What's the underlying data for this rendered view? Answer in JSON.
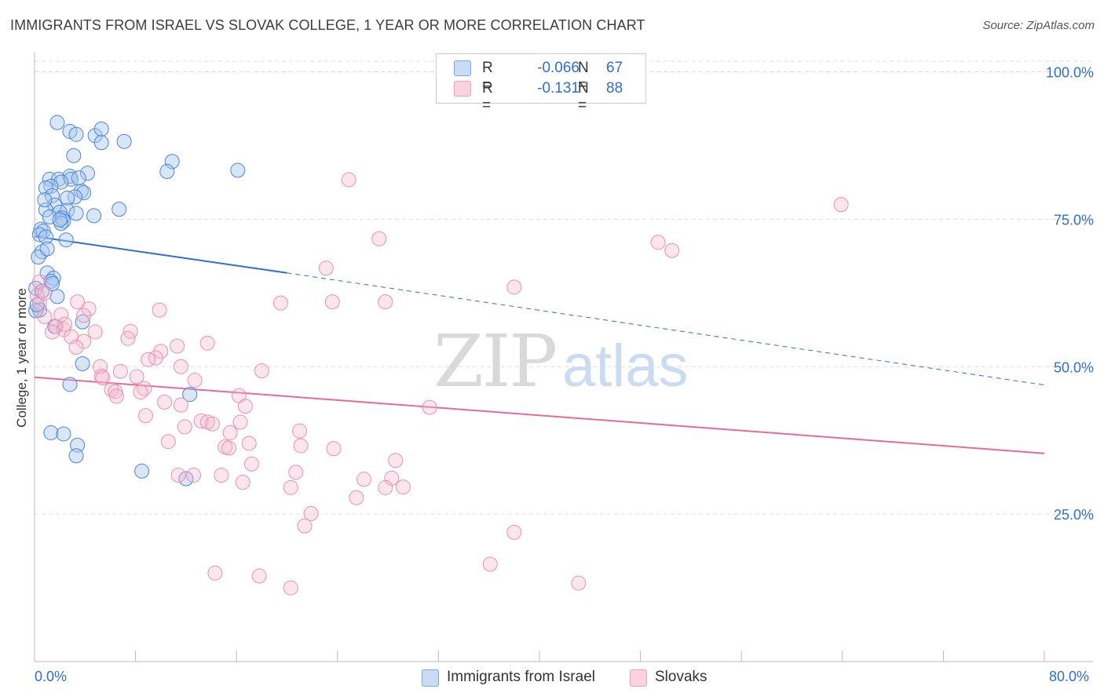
{
  "title": "IMMIGRANTS FROM ISRAEL VS SLOVAK COLLEGE, 1 YEAR OR MORE CORRELATION CHART",
  "source": "Source: ZipAtlas.com",
  "watermark": {
    "zip": "ZIP",
    "atlas": "atlas"
  },
  "legend": {
    "rows": [
      {
        "r_label": "R =",
        "r_value": "-0.066",
        "n_label": "N =",
        "n_value": "67",
        "color": "#a9c8f0"
      },
      {
        "r_label": "R =",
        "r_value": "-0.131",
        "n_label": "N =",
        "n_value": "88",
        "color": "#f7b8cc"
      }
    ]
  },
  "bottom_legend": [
    {
      "label": "Immigrants from Israel",
      "color": "#a9c8f0"
    },
    {
      "label": "Slovaks",
      "color": "#f7b8cc"
    }
  ],
  "colors": {
    "blue": "#2e6fd0",
    "blue_fill": "#a9c8f0",
    "pink": "#e8699a",
    "pink_fill": "#f7b8cc",
    "grid": "#dddddd",
    "axis_text": "#2e6fd0"
  },
  "chart_data": {
    "type": "scatter",
    "title": "IMMIGRANTS FROM ISRAEL VS SLOVAK COLLEGE, 1 YEAR OR MORE CORRELATION CHART",
    "xlabel": "",
    "ylabel": "College, 1 year or more",
    "xlim": [
      0,
      80
    ],
    "ylim": [
      0,
      103.4
    ],
    "x_tick_labels": [
      "0.0%",
      "80.0%"
    ],
    "y_ticks": [
      25,
      50,
      75,
      100
    ],
    "y_tick_labels": [
      "25.0%",
      "50.0%",
      "75.0%",
      "100.0%"
    ],
    "grid": true,
    "legend_position": "top-center",
    "series": [
      {
        "name": "Immigrants from Israel",
        "r": -0.066,
        "n": 67,
        "trend": {
          "x0": 0,
          "y0": 72.1,
          "x1": 20,
          "y1": 65.9,
          "dashed_to_x": 80,
          "dashed_to_y": 46.9
        },
        "points": [
          [
            1.8,
            91.4
          ],
          [
            2.8,
            89.9
          ],
          [
            3.3,
            89.4
          ],
          [
            4.8,
            89.2
          ],
          [
            5.3,
            90.3
          ],
          [
            7.1,
            88.2
          ],
          [
            5.3,
            88.0
          ],
          [
            3.1,
            85.8
          ],
          [
            10.9,
            84.8
          ],
          [
            10.5,
            83.1
          ],
          [
            16.1,
            83.3
          ],
          [
            4.2,
            82.8
          ],
          [
            1.2,
            81.8
          ],
          [
            1.9,
            81.8
          ],
          [
            2.8,
            82.3
          ],
          [
            2.9,
            81.8
          ],
          [
            2.1,
            81.3
          ],
          [
            1.3,
            80.6
          ],
          [
            0.9,
            80.3
          ],
          [
            3.7,
            79.8
          ],
          [
            3.9,
            79.5
          ],
          [
            1.4,
            79.0
          ],
          [
            3.2,
            78.8
          ],
          [
            2.6,
            78.6
          ],
          [
            1.6,
            77.4
          ],
          [
            6.7,
            76.7
          ],
          [
            0.9,
            76.6
          ],
          [
            2.6,
            76.5
          ],
          [
            2.0,
            76.2
          ],
          [
            3.3,
            76.0
          ],
          [
            4.7,
            75.6
          ],
          [
            1.2,
            75.4
          ],
          [
            2.2,
            75.2
          ],
          [
            2.3,
            74.7
          ],
          [
            2.1,
            74.3
          ],
          [
            0.5,
            73.3
          ],
          [
            0.7,
            73.0
          ],
          [
            0.4,
            72.4
          ],
          [
            0.9,
            72.0
          ],
          [
            2.5,
            71.5
          ],
          [
            0.6,
            69.5
          ],
          [
            0.3,
            68.6
          ],
          [
            1.0,
            65.9
          ],
          [
            1.5,
            65.0
          ],
          [
            1.3,
            64.5
          ],
          [
            1.4,
            64.1
          ],
          [
            0.1,
            63.3
          ],
          [
            0.6,
            62.8
          ],
          [
            1.8,
            61.9
          ],
          [
            0.4,
            59.6
          ],
          [
            0.1,
            59.5
          ],
          [
            3.8,
            57.6
          ],
          [
            1.6,
            56.8
          ],
          [
            3.8,
            50.5
          ],
          [
            2.8,
            47.0
          ],
          [
            12.3,
            45.3
          ],
          [
            1.3,
            38.8
          ],
          [
            2.3,
            38.6
          ],
          [
            3.4,
            36.7
          ],
          [
            3.3,
            34.9
          ],
          [
            8.5,
            32.3
          ],
          [
            12.0,
            31.0
          ],
          [
            0.2,
            60.5
          ],
          [
            1.0,
            70.0
          ],
          [
            2.0,
            74.9
          ],
          [
            0.8,
            78.3
          ],
          [
            3.5,
            82.0
          ]
        ]
      },
      {
        "name": "Slovaks",
        "r": -0.131,
        "n": 88,
        "trend": {
          "x0": 0,
          "y0": 48.2,
          "x1": 80,
          "y1": 35.3
        },
        "points": [
          [
            24.9,
            81.7
          ],
          [
            63.9,
            77.5
          ],
          [
            27.3,
            71.7
          ],
          [
            49.4,
            71.1
          ],
          [
            50.5,
            69.7
          ],
          [
            23.1,
            66.7
          ],
          [
            38.0,
            63.5
          ],
          [
            0.4,
            64.4
          ],
          [
            0.2,
            62.0
          ],
          [
            0.4,
            60.8
          ],
          [
            3.4,
            61.0
          ],
          [
            4.3,
            59.8
          ],
          [
            9.9,
            59.6
          ],
          [
            19.5,
            60.8
          ],
          [
            23.6,
            61.0
          ],
          [
            27.8,
            61.0
          ],
          [
            0.8,
            58.5
          ],
          [
            2.1,
            58.8
          ],
          [
            3.9,
            58.7
          ],
          [
            1.7,
            56.8
          ],
          [
            2.3,
            56.3
          ],
          [
            1.4,
            55.9
          ],
          [
            4.8,
            55.9
          ],
          [
            7.6,
            56.0
          ],
          [
            2.9,
            55.1
          ],
          [
            3.9,
            54.3
          ],
          [
            7.4,
            54.8
          ],
          [
            13.7,
            54.0
          ],
          [
            11.3,
            53.5
          ],
          [
            3.3,
            53.3
          ],
          [
            10.0,
            52.6
          ],
          [
            9.6,
            51.5
          ],
          [
            9.0,
            51.2
          ],
          [
            5.2,
            50.0
          ],
          [
            11.6,
            50.0
          ],
          [
            6.8,
            49.2
          ],
          [
            18.0,
            49.3
          ],
          [
            5.3,
            48.4
          ],
          [
            5.4,
            48.1
          ],
          [
            8.1,
            48.3
          ],
          [
            12.7,
            47.7
          ],
          [
            6.1,
            46.1
          ],
          [
            8.7,
            46.3
          ],
          [
            6.4,
            45.8
          ],
          [
            8.4,
            45.7
          ],
          [
            16.2,
            45.1
          ],
          [
            6.5,
            45.0
          ],
          [
            10.3,
            44.0
          ],
          [
            11.6,
            43.5
          ],
          [
            16.7,
            43.3
          ],
          [
            31.3,
            43.1
          ],
          [
            8.8,
            41.7
          ],
          [
            13.2,
            40.8
          ],
          [
            13.7,
            40.6
          ],
          [
            14.1,
            40.3
          ],
          [
            16.3,
            40.6
          ],
          [
            11.9,
            39.8
          ],
          [
            21.0,
            39.1
          ],
          [
            15.5,
            38.8
          ],
          [
            10.6,
            37.3
          ],
          [
            21.1,
            36.6
          ],
          [
            15.1,
            36.4
          ],
          [
            15.4,
            36.2
          ],
          [
            17.0,
            37.0
          ],
          [
            23.7,
            36.1
          ],
          [
            17.2,
            33.5
          ],
          [
            28.6,
            34.1
          ],
          [
            20.7,
            32.1
          ],
          [
            11.4,
            31.6
          ],
          [
            12.6,
            31.6
          ],
          [
            14.8,
            31.6
          ],
          [
            26.1,
            30.9
          ],
          [
            28.3,
            31.1
          ],
          [
            16.5,
            30.4
          ],
          [
            20.3,
            29.5
          ],
          [
            27.8,
            29.5
          ],
          [
            29.2,
            29.6
          ],
          [
            25.5,
            27.8
          ],
          [
            21.9,
            25.1
          ],
          [
            21.4,
            23.0
          ],
          [
            38.0,
            21.9
          ],
          [
            36.1,
            16.5
          ],
          [
            14.3,
            15.0
          ],
          [
            17.8,
            14.5
          ],
          [
            20.3,
            12.5
          ],
          [
            43.1,
            13.3
          ],
          [
            0.8,
            62.5
          ],
          [
            2.4,
            57.2
          ]
        ]
      }
    ]
  }
}
